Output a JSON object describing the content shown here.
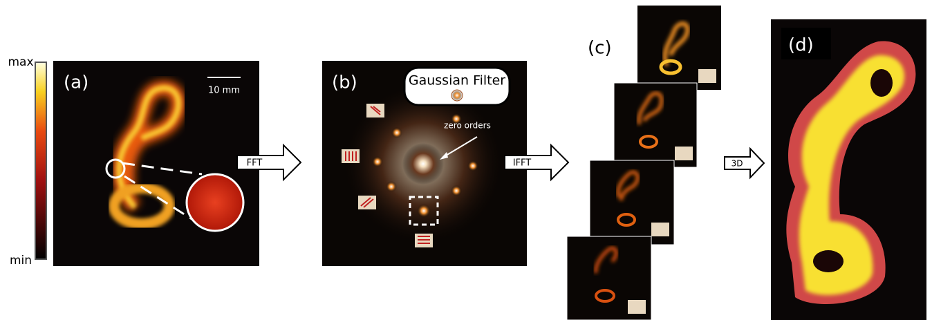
{
  "colorbar": {
    "max": "max",
    "min": "min"
  },
  "panel_a": {
    "label": "(a)",
    "scale_bar": "10 mm"
  },
  "panel_b": {
    "label": "(b)",
    "filter": "Gaussian Filter",
    "annotation": "zero orders"
  },
  "panel_c": {
    "label": "(c)"
  },
  "panel_d": {
    "label": "(d)"
  },
  "arrows": [
    "FFT",
    "IFFT",
    "3D"
  ]
}
